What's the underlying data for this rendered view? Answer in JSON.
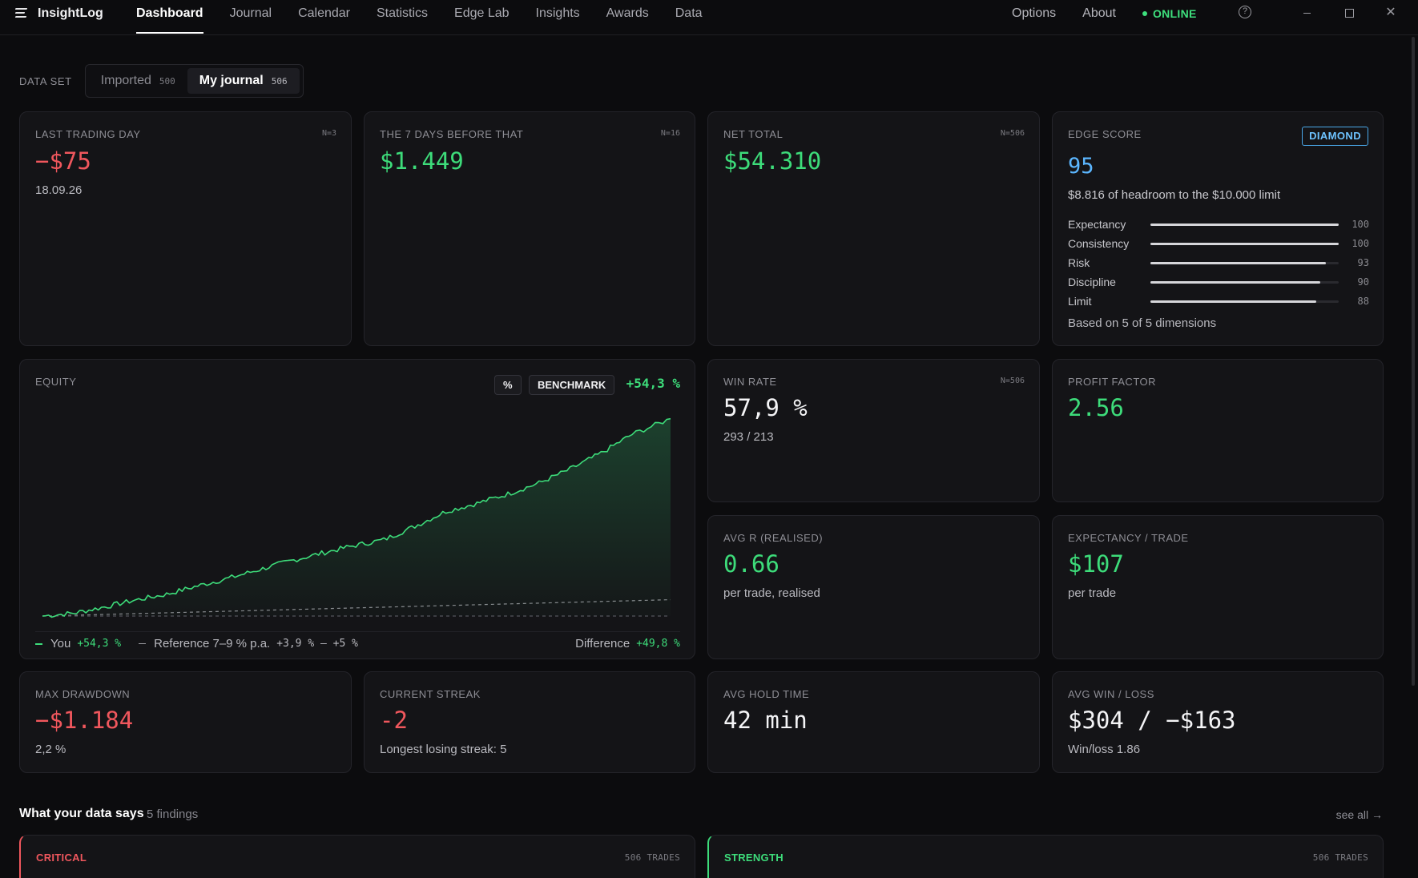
{
  "app": {
    "name": "InsightLog"
  },
  "nav": {
    "items": [
      "Dashboard",
      "Journal",
      "Calendar",
      "Statistics",
      "Edge Lab",
      "Insights",
      "Awards",
      "Data"
    ],
    "active": "Dashboard"
  },
  "topright": {
    "options": "Options",
    "about": "About",
    "status": "ONLINE",
    "help": "?"
  },
  "window_controls": {
    "minimize": "",
    "maximize": "",
    "close": "✕"
  },
  "dataset": {
    "label": "DATA SET",
    "options": [
      {
        "label": "Imported",
        "count": "500"
      },
      {
        "label": "My journal",
        "count": "506"
      }
    ],
    "selected": "My journal"
  },
  "cards": {
    "last_day": {
      "title": "LAST TRADING DAY",
      "n": "N=3",
      "value": "−$75",
      "sub": "18.09.26"
    },
    "prev7": {
      "title": "THE 7 DAYS BEFORE THAT",
      "n": "N=16",
      "value": "$1.449"
    },
    "net_total": {
      "title": "NET TOTAL",
      "n": "N=506",
      "value": "$54.310"
    },
    "edge": {
      "title": "EDGE SCORE",
      "badge": "DIAMOND",
      "score": "95",
      "headroom": "$8.816 of headroom to the $10.000 limit",
      "dimensions": [
        {
          "name": "Expectancy",
          "value": "100",
          "pct": 100
        },
        {
          "name": "Consistency",
          "value": "100",
          "pct": 100
        },
        {
          "name": "Risk",
          "value": "93",
          "pct": 93
        },
        {
          "name": "Discipline",
          "value": "90",
          "pct": 90
        },
        {
          "name": "Limit",
          "value": "88",
          "pct": 88
        }
      ],
      "footer": "Based on 5 of 5 dimensions"
    },
    "win_rate": {
      "title": "WIN RATE",
      "n": "N=506",
      "value": "57,9 %",
      "sub": "293 / 213"
    },
    "profit_factor": {
      "title": "PROFIT FACTOR",
      "value": "2.56"
    },
    "avg_r": {
      "title": "AVG R (REALISED)",
      "value": "0.66",
      "sub": "per trade, realised"
    },
    "expectancy": {
      "title": "EXPECTANCY / TRADE",
      "value": "$107",
      "sub": "per trade"
    },
    "max_dd": {
      "title": "MAX DRAWDOWN",
      "value": "−$1.184",
      "sub": "2,2 %"
    },
    "streak": {
      "title": "CURRENT STREAK",
      "value": "-2",
      "sub": "Longest losing streak: 5"
    },
    "hold": {
      "title": "AVG HOLD TIME",
      "value": "42 min"
    },
    "winloss": {
      "title": "AVG WIN / LOSS",
      "value": "$304 / −$163",
      "sub": "Win/loss 1.86"
    }
  },
  "equity": {
    "title": "EQUITY",
    "pct_button": "%",
    "benchmark_button": "BENCHMARK",
    "total": "+54,3 %",
    "legend": {
      "you_label": "You",
      "you_value": "+54,3 %",
      "ref_label": "Reference 7–9 % p.a.",
      "ref_value": "+3,9 % – +5 %",
      "diff_label": "Difference",
      "diff_value": "+49,8 %"
    }
  },
  "chart_data": {
    "type": "area",
    "title": "",
    "xlabel": "",
    "ylabel": "",
    "x_unit": "trade index",
    "y_unit": "% return",
    "ylim": [
      0,
      56
    ],
    "series": [
      {
        "name": "You",
        "color": "#3ddc7a",
        "x": [
          0,
          25,
          50,
          75,
          100,
          125,
          150,
          175,
          200,
          225,
          250,
          275,
          300,
          325,
          350,
          375,
          400,
          425,
          450,
          475,
          506
        ],
        "values": [
          0,
          0.8,
          2.5,
          4.4,
          6.0,
          8.3,
          10.4,
          12.8,
          15.2,
          17.3,
          19.3,
          21.0,
          24.7,
          28.8,
          31.0,
          33.6,
          36.6,
          40.4,
          44.8,
          50.0,
          54.3
        ]
      },
      {
        "name": "Reference 7–9 % p.a.",
        "color": "#8a8a90",
        "dashed": true,
        "x": [
          0,
          506
        ],
        "values": [
          0,
          4.5
        ]
      },
      {
        "name": "",
        "color": "#55555c",
        "dashed": true,
        "x": [
          0,
          506
        ],
        "values": [
          0,
          0
        ]
      }
    ],
    "grid": false
  },
  "findings": {
    "title": "What your data says",
    "count": "5 findings",
    "see_all": "see all →",
    "items": [
      {
        "type": "CRITICAL",
        "trades": "506 TRADES",
        "color": "#f0575d"
      },
      {
        "type": "STRENGTH",
        "trades": "506 TRADES",
        "color": "#3ddc7a"
      }
    ]
  }
}
